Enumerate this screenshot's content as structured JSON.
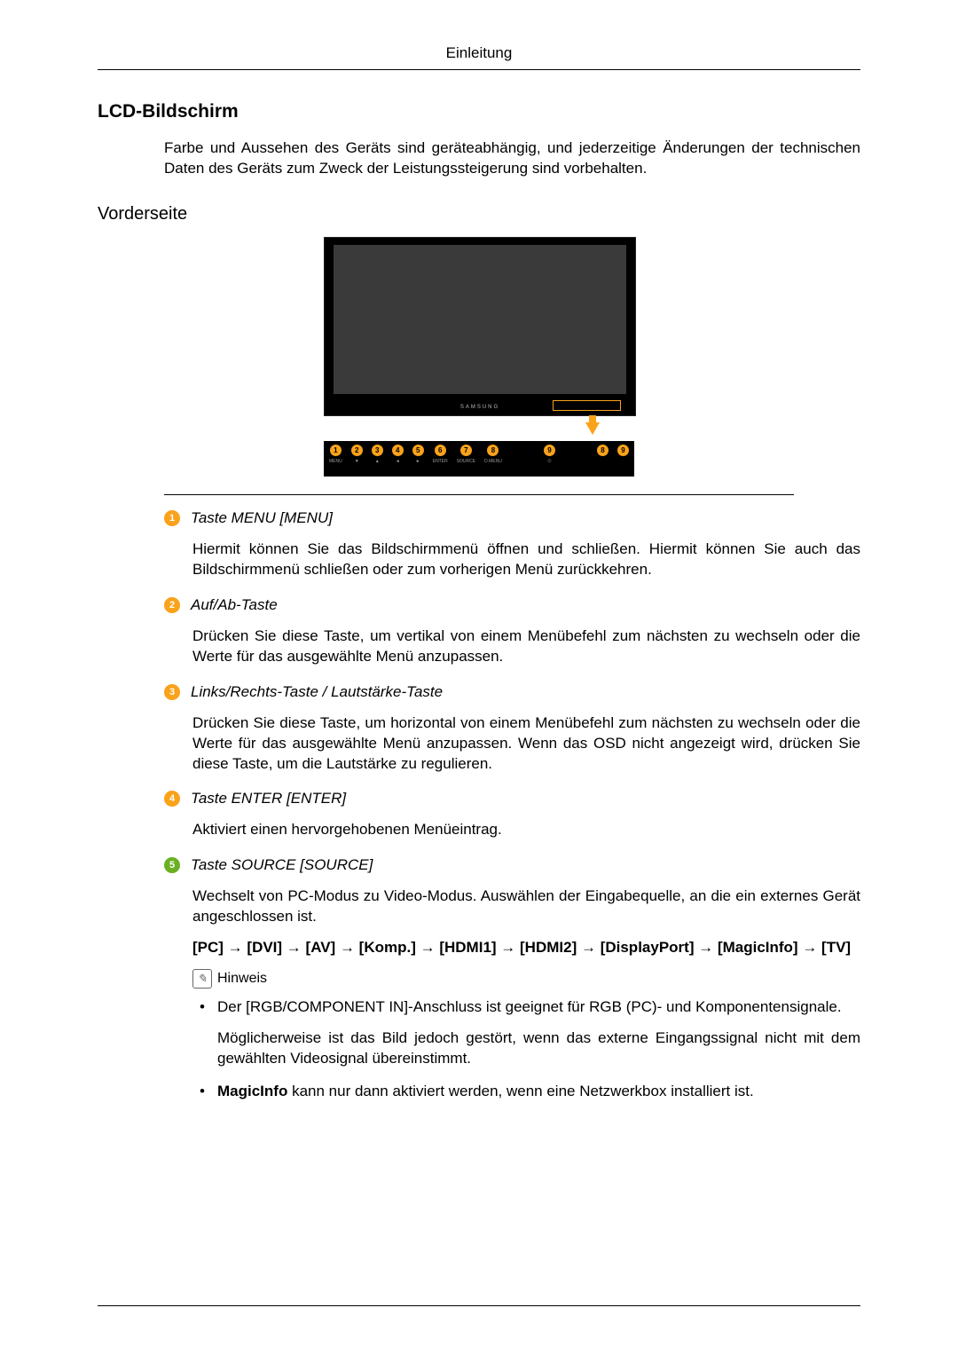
{
  "page": {
    "header": "Einleitung",
    "h1": "LCD-Bildschirm",
    "intro": "Farbe und Aussehen des Geräts sind geräteabhängig, und jederzeitige Änderungen der technischen Daten des Geräts zum Zweck der Leistungssteigerung sind vorbehalten.",
    "h2": "Vorderseite"
  },
  "illustration": {
    "brand": "SAMSUNG",
    "panel_numbers": [
      "1",
      "2",
      "3",
      "4",
      "5",
      "6",
      "7",
      "8",
      "9"
    ],
    "panel_labels": [
      "MENU",
      "▼",
      "▲",
      "◄",
      "►",
      "ENTER",
      "SOURCE",
      "D.MENU",
      "⏻",
      "",
      ""
    ],
    "colors": {
      "accent": "#f9a21a",
      "panel_bg": "#000000",
      "screen_bg": "#3a3a3a"
    }
  },
  "items": [
    {
      "num": "1",
      "badge_bg": "#f9a21a",
      "title": "Taste MENU [MENU]",
      "body": "Hiermit können Sie das Bildschirmmenü öffnen und schließen. Hiermit können Sie auch das Bildschirmmenü schließen oder zum vorherigen Menü zurückkehren."
    },
    {
      "num": "2",
      "badge_bg": "#f9a21a",
      "title": "Auf/Ab-Taste",
      "body": "Drücken Sie diese Taste, um vertikal von einem Menübefehl zum nächsten zu wechseln oder die Werte für das ausgewählte Menü anzupassen."
    },
    {
      "num": "3",
      "badge_bg": "#f9a21a",
      "title": "Links/Rechts-Taste / Lautstärke-Taste",
      "body": "Drücken Sie diese Taste, um horizontal von einem Menübefehl zum nächsten zu wechseln oder die Werte für das ausgewählte Menü anzupassen. Wenn das OSD nicht angezeigt wird, drücken Sie diese Taste, um die Lautstärke zu regulieren."
    },
    {
      "num": "4",
      "badge_bg": "#f9a21a",
      "title": "Taste ENTER [ENTER]",
      "body": "Aktiviert einen hervorgehobenen Menüeintrag."
    },
    {
      "num": "5",
      "badge_bg": "#6ab023",
      "title": "Taste SOURCE [SOURCE]",
      "body": "Wechselt von PC-Modus zu Video-Modus. Auswählen der Eingabequelle, an die ein externes Gerät angeschlossen ist.",
      "source_chain": "[PC] → [DVI] → [AV] → [Komp.] → [HDMI1] → [HDMI2] → [DisplayPort] → [MagicInfo] → [TV]",
      "note_label": "Hinweis",
      "bullets": [
        {
          "text": "Der [RGB/COMPONENT IN]-Anschluss ist geeignet für RGB (PC)- und Komponentensignale.",
          "sub": "Möglicherweise ist das Bild jedoch gestört, wenn das externe Eingangssignal nicht mit dem gewählten Videosignal übereinstimmt."
        },
        {
          "text": "MagicInfo kann nur dann aktiviert werden, wenn eine Netzwerkbox installiert ist."
        }
      ]
    }
  ]
}
